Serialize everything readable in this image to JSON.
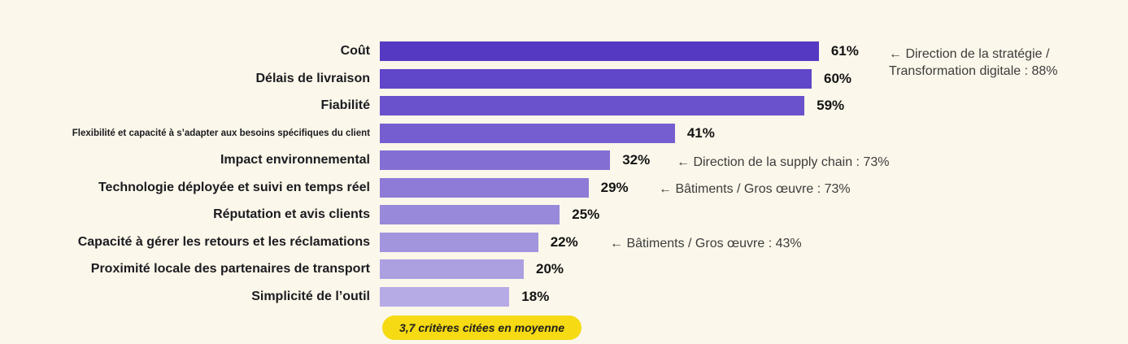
{
  "chart_data": {
    "type": "bar",
    "orientation": "horizontal",
    "title": "",
    "xlabel": "",
    "ylabel": "",
    "unit": "%",
    "xlim": [
      0,
      100
    ],
    "grid": false,
    "legend": false,
    "categories": [
      "Coût",
      "Délais de livraison",
      "Fiabilité",
      "Flexibilité et capacité à s’adapter aux besoins spécifiques du client",
      "Impact environnemental",
      "Technologie déployée et suivi en temps réel",
      "Réputation et avis clients",
      "Capacité à gérer les retours et les réclamations",
      "Proximité locale des partenaires de transport",
      "Simplicité de l’outil"
    ],
    "values": [
      61,
      60,
      59,
      41,
      32,
      29,
      25,
      22,
      20,
      18
    ],
    "rows": [
      {
        "label": "Coût",
        "value": 61,
        "value_label": "61%",
        "color": "#5639C3"
      },
      {
        "label": "Délais de livraison",
        "value": 60,
        "value_label": "60%",
        "color": "#6046C8"
      },
      {
        "label": "Fiabilité",
        "value": 59,
        "value_label": "59%",
        "color": "#6A52CC"
      },
      {
        "label": "Flexibilité et capacité à s’adapter aux besoins spécifiques du client",
        "value": 41,
        "value_label": "41%",
        "color": "#755FD0"
      },
      {
        "label": "Impact environnemental",
        "value": 32,
        "value_label": "32%",
        "color": "#836FD4"
      },
      {
        "label": "Technologie déployée et suivi en temps réel",
        "value": 29,
        "value_label": "29%",
        "color": "#8D7BD7"
      },
      {
        "label": "Réputation et avis clients",
        "value": 25,
        "value_label": "25%",
        "color": "#9889DA"
      },
      {
        "label": "Capacité à gérer les retours et les réclamations",
        "value": 22,
        "value_label": "22%",
        "color": "#A294DD"
      },
      {
        "label": "Proximité locale des partenaires de transport",
        "value": 20,
        "value_label": "20%",
        "color": "#ACA0E1"
      },
      {
        "label": "Simplicité de l’outil",
        "value": 18,
        "value_label": "18%",
        "color": "#B6ABE4"
      }
    ],
    "annotations": [
      {
        "text": "← Direction de la stratégie / Transformation digitale : 88%",
        "target_category": "Coût"
      },
      {
        "text": "← Direction de la supply chain : 73%",
        "target_category": "Impact environnemental"
      },
      {
        "text": "← Bâtiments / Gros œuvre : 73%",
        "target_category": "Technologie déployée et suivi en temps réel"
      },
      {
        "text": "← Bâtiments / Gros œuvre : 43%",
        "target_category": "Capacité à gérer les retours et les réclamations"
      }
    ],
    "footnote": "3,7 critères citées en moyenne"
  },
  "colors": {
    "background": "#FBF7EA",
    "bar_gradient_start": "#5639C3",
    "bar_gradient_end": "#B6ABE4",
    "label_text": "#1B1B20",
    "value_text": "#141414",
    "annotation_text": "#3C3C3C",
    "badge_bg": "#F5DA14",
    "badge_text": "#201F1B"
  }
}
